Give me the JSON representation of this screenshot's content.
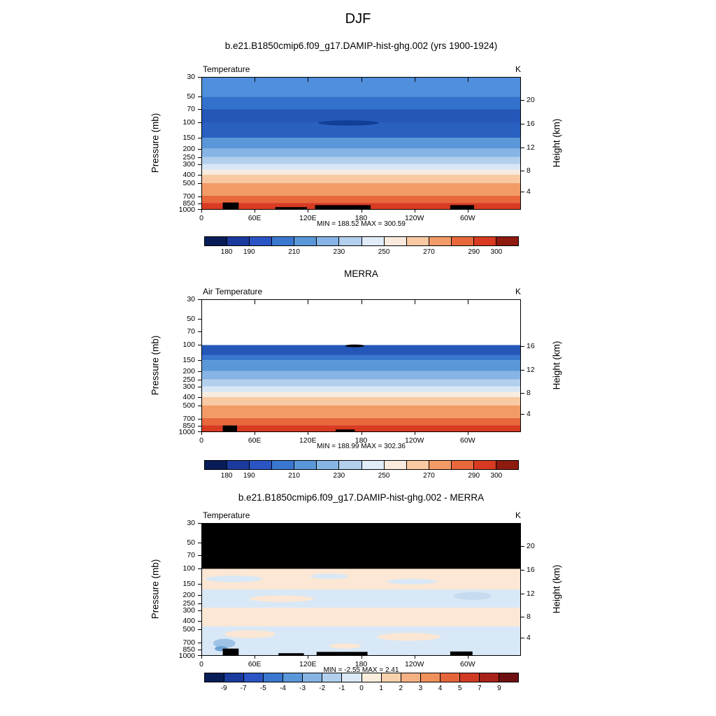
{
  "page": {
    "title": "DJF"
  },
  "chart_data": [
    {
      "type": "heatmap",
      "title": "b.e21.B1850cmip6.f09_g17.DAMIP-hist-ghg.002 (yrs 1900-1924)",
      "field_label": "Temperature",
      "units": "K",
      "y_axis_label": "Pressure (mb)",
      "y2_axis_label": "Height (km)",
      "y_range": [
        30,
        1000
      ],
      "y_scale": "log",
      "x_range_deg": [
        0,
        360
      ],
      "min": 188.52,
      "max": 300.59,
      "stats": "MIN = 188.52  MAX = 300.59",
      "x_ticks": [
        {
          "label": "0",
          "f": 0.0
        },
        {
          "label": "60E",
          "f": 0.1667
        },
        {
          "label": "120E",
          "f": 0.3333
        },
        {
          "label": "180",
          "f": 0.5
        },
        {
          "label": "120W",
          "f": 0.6667
        },
        {
          "label": "60W",
          "f": 0.8333
        }
      ],
      "pressure_ticks": [
        {
          "label": "30",
          "f": 0.0
        },
        {
          "label": "50",
          "f": 0.146
        },
        {
          "label": "70",
          "f": 0.242
        },
        {
          "label": "100",
          "f": 0.343
        },
        {
          "label": "150",
          "f": 0.459
        },
        {
          "label": "200",
          "f": 0.541
        },
        {
          "label": "250",
          "f": 0.605
        },
        {
          "label": "300",
          "f": 0.657
        },
        {
          "label": "400",
          "f": 0.739
        },
        {
          "label": "500",
          "f": 0.802
        },
        {
          "label": "700",
          "f": 0.898
        },
        {
          "label": "850",
          "f": 0.953
        },
        {
          "label": "1000",
          "f": 1.0
        }
      ],
      "height_ticks": [
        {
          "label": "20",
          "f": 0.173
        },
        {
          "label": "16",
          "f": 0.352
        },
        {
          "label": "12",
          "f": 0.533
        },
        {
          "label": "8",
          "f": 0.706
        },
        {
          "label": "4",
          "f": 0.863
        }
      ],
      "colorbar": {
        "levels": [
          180,
          190,
          200,
          210,
          220,
          230,
          240,
          250,
          260,
          270,
          280,
          290,
          300
        ],
        "colors": [
          "#081d58",
          "#1b3a9e",
          "#2b55c4",
          "#3a78d0",
          "#5a97d8",
          "#86b4e4",
          "#b2cfee",
          "#e0ecf8",
          "#faeadd",
          "#f8c9a2",
          "#f29b66",
          "#e8683c",
          "#d83b22",
          "#8e1a10"
        ],
        "tick_labels": [
          {
            "label": "180",
            "f": 0.0714
          },
          {
            "label": "190",
            "f": 0.1429
          },
          {
            "label": "210",
            "f": 0.2857
          },
          {
            "label": "230",
            "f": 0.4286
          },
          {
            "label": "250",
            "f": 0.5714
          },
          {
            "label": "270",
            "f": 0.7143
          },
          {
            "label": "290",
            "f": 0.8571
          },
          {
            "label": "300",
            "f": 0.9286
          }
        ]
      },
      "fill": {
        "bands": [
          {
            "f0": 0.0,
            "f1": 0.146,
            "c": "#4f8fdc"
          },
          {
            "f0": 0.146,
            "f1": 0.242,
            "c": "#3372cc"
          },
          {
            "f0": 0.242,
            "f1": 0.343,
            "c": "#2457b8"
          },
          {
            "f0": 0.343,
            "f1": 0.459,
            "c": "#2a60c0"
          },
          {
            "f0": 0.459,
            "f1": 0.541,
            "c": "#5a97d8"
          },
          {
            "f0": 0.541,
            "f1": 0.605,
            "c": "#86b4e4"
          },
          {
            "f0": 0.605,
            "f1": 0.657,
            "c": "#b2cfee"
          },
          {
            "f0": 0.657,
            "f1": 0.7,
            "c": "#d8e6f5"
          },
          {
            "f0": 0.7,
            "f1": 0.739,
            "c": "#f6ecdf"
          },
          {
            "f0": 0.739,
            "f1": 0.802,
            "c": "#f8c9a2"
          },
          {
            "f0": 0.802,
            "f1": 0.898,
            "c": "#f29b66"
          },
          {
            "f0": 0.898,
            "f1": 0.953,
            "c": "#e8683c"
          },
          {
            "f0": 0.953,
            "f1": 1.0,
            "c": "#d83b22"
          }
        ],
        "ellipses": [
          {
            "cx": 0.46,
            "cy": 0.345,
            "rx": 0.095,
            "ry": 0.02,
            "c": "#123f96"
          }
        ],
        "topo": [
          {
            "x": 0.065,
            "y": 0.95,
            "w": 0.05,
            "h": 0.05
          },
          {
            "x": 0.23,
            "y": 0.985,
            "w": 0.1,
            "h": 0.015
          },
          {
            "x": 0.355,
            "y": 0.97,
            "w": 0.175,
            "h": 0.03
          },
          {
            "x": 0.78,
            "y": 0.97,
            "w": 0.075,
            "h": 0.03
          }
        ]
      }
    },
    {
      "type": "heatmap",
      "title": "MERRA",
      "field_label": "Air Temperature",
      "units": "K",
      "y_axis_label": "Pressure (mb)",
      "y2_axis_label": "Height (km)",
      "y_range": [
        30,
        1000
      ],
      "y_scale": "log",
      "x_range_deg": [
        0,
        360
      ],
      "min": 188.99,
      "max": 302.36,
      "stats": "MIN = 188.99  MAX = 302.36",
      "x_ticks": [
        {
          "label": "0",
          "f": 0.0
        },
        {
          "label": "60E",
          "f": 0.1667
        },
        {
          "label": "120E",
          "f": 0.3333
        },
        {
          "label": "180",
          "f": 0.5
        },
        {
          "label": "120W",
          "f": 0.6667
        },
        {
          "label": "60W",
          "f": 0.8333
        }
      ],
      "pressure_ticks": [
        {
          "label": "30",
          "f": 0.0
        },
        {
          "label": "50",
          "f": 0.146
        },
        {
          "label": "70",
          "f": 0.242
        },
        {
          "label": "100",
          "f": 0.343
        },
        {
          "label": "150",
          "f": 0.459
        },
        {
          "label": "200",
          "f": 0.541
        },
        {
          "label": "250",
          "f": 0.605
        },
        {
          "label": "300",
          "f": 0.657
        },
        {
          "label": "400",
          "f": 0.739
        },
        {
          "label": "500",
          "f": 0.802
        },
        {
          "label": "700",
          "f": 0.898
        },
        {
          "label": "850",
          "f": 0.953
        },
        {
          "label": "1000",
          "f": 1.0
        }
      ],
      "height_ticks": [
        {
          "label": "16",
          "f": 0.352
        },
        {
          "label": "12",
          "f": 0.533
        },
        {
          "label": "8",
          "f": 0.706
        },
        {
          "label": "4",
          "f": 0.863
        }
      ],
      "colorbar": {
        "levels": [
          180,
          190,
          200,
          210,
          220,
          230,
          240,
          250,
          260,
          270,
          280,
          290,
          300
        ],
        "colors": [
          "#081d58",
          "#1b3a9e",
          "#2b55c4",
          "#3a78d0",
          "#5a97d8",
          "#86b4e4",
          "#b2cfee",
          "#e0ecf8",
          "#faeadd",
          "#f8c9a2",
          "#f29b66",
          "#e8683c",
          "#d83b22",
          "#8e1a10"
        ],
        "tick_labels": [
          {
            "label": "180",
            "f": 0.0714
          },
          {
            "label": "190",
            "f": 0.1429
          },
          {
            "label": "210",
            "f": 0.2857
          },
          {
            "label": "230",
            "f": 0.4286
          },
          {
            "label": "250",
            "f": 0.5714
          },
          {
            "label": "270",
            "f": 0.7143
          },
          {
            "label": "290",
            "f": 0.8571
          },
          {
            "label": "300",
            "f": 0.9286
          }
        ]
      },
      "fill": {
        "bands": [
          {
            "f0": 0.0,
            "f1": 0.343,
            "c": "#ffffff"
          },
          {
            "f0": 0.343,
            "f1": 0.42,
            "c": "#2457b8"
          },
          {
            "f0": 0.42,
            "f1": 0.459,
            "c": "#3a78d0"
          },
          {
            "f0": 0.459,
            "f1": 0.541,
            "c": "#5a97d8"
          },
          {
            "f0": 0.541,
            "f1": 0.605,
            "c": "#86b4e4"
          },
          {
            "f0": 0.605,
            "f1": 0.657,
            "c": "#b2cfee"
          },
          {
            "f0": 0.657,
            "f1": 0.7,
            "c": "#d8e6f5"
          },
          {
            "f0": 0.7,
            "f1": 0.739,
            "c": "#f6ecdf"
          },
          {
            "f0": 0.739,
            "f1": 0.802,
            "c": "#f8c9a2"
          },
          {
            "f0": 0.802,
            "f1": 0.898,
            "c": "#f29b66"
          },
          {
            "f0": 0.898,
            "f1": 0.953,
            "c": "#e8683c"
          },
          {
            "f0": 0.953,
            "f1": 1.0,
            "c": "#d83b22"
          }
        ],
        "ellipses": [
          {
            "cx": 0.48,
            "cy": 0.349,
            "rx": 0.03,
            "ry": 0.01,
            "c": "#000000"
          }
        ],
        "topo": [
          {
            "x": 0.065,
            "y": 0.955,
            "w": 0.045,
            "h": 0.045
          },
          {
            "x": 0.42,
            "y": 0.985,
            "w": 0.06,
            "h": 0.015
          }
        ]
      }
    },
    {
      "type": "heatmap",
      "title": "b.e21.B1850cmip6.f09_g17.DAMIP-hist-ghg.002 - MERRA",
      "field_label": "Temperature",
      "units": "K",
      "y_axis_label": "Pressure (mb)",
      "y2_axis_label": "Height (km)",
      "y_range": [
        30,
        1000
      ],
      "y_scale": "log",
      "x_range_deg": [
        0,
        360
      ],
      "min": -2.55,
      "max": 2.41,
      "stats": "MIN = -2.55  MAX =  2.41",
      "x_ticks": [
        {
          "label": "0",
          "f": 0.0
        },
        {
          "label": "60E",
          "f": 0.1667
        },
        {
          "label": "120E",
          "f": 0.3333
        },
        {
          "label": "180",
          "f": 0.5
        },
        {
          "label": "120W",
          "f": 0.6667
        },
        {
          "label": "60W",
          "f": 0.8333
        }
      ],
      "pressure_ticks": [
        {
          "label": "30",
          "f": 0.0
        },
        {
          "label": "50",
          "f": 0.146
        },
        {
          "label": "70",
          "f": 0.242
        },
        {
          "label": "100",
          "f": 0.343
        },
        {
          "label": "150",
          "f": 0.459
        },
        {
          "label": "200",
          "f": 0.541
        },
        {
          "label": "250",
          "f": 0.605
        },
        {
          "label": "300",
          "f": 0.657
        },
        {
          "label": "400",
          "f": 0.739
        },
        {
          "label": "500",
          "f": 0.802
        },
        {
          "label": "700",
          "f": 0.898
        },
        {
          "label": "850",
          "f": 0.953
        },
        {
          "label": "1000",
          "f": 1.0
        }
      ],
      "height_ticks": [
        {
          "label": "20",
          "f": 0.173
        },
        {
          "label": "16",
          "f": 0.352
        },
        {
          "label": "12",
          "f": 0.533
        },
        {
          "label": "8",
          "f": 0.706
        },
        {
          "label": "4",
          "f": 0.863
        }
      ],
      "colorbar": {
        "levels": [
          -9,
          -7,
          -5,
          -4,
          -3,
          -2,
          -1,
          0,
          1,
          2,
          3,
          4,
          5,
          7,
          9
        ],
        "colors": [
          "#081d58",
          "#1b3a9e",
          "#2b55c4",
          "#3a78d0",
          "#5a97d8",
          "#86b4e4",
          "#b2cfee",
          "#dce9f7",
          "#fbeedd",
          "#f8d2ae",
          "#f5b183",
          "#f0915c",
          "#e4653a",
          "#d13b24",
          "#a8221a",
          "#6e0f12"
        ],
        "tick_labels": [
          {
            "label": "-9",
            "f": 0.0625
          },
          {
            "label": "-7",
            "f": 0.125
          },
          {
            "label": "-5",
            "f": 0.1875
          },
          {
            "label": "-4",
            "f": 0.25
          },
          {
            "label": "-3",
            "f": 0.3125
          },
          {
            "label": "-2",
            "f": 0.375
          },
          {
            "label": "-1",
            "f": 0.4375
          },
          {
            "label": "0",
            "f": 0.5
          },
          {
            "label": "1",
            "f": 0.5625
          },
          {
            "label": "2",
            "f": 0.625
          },
          {
            "label": "3",
            "f": 0.6875
          },
          {
            "label": "4",
            "f": 0.75
          },
          {
            "label": "5",
            "f": 0.8125
          },
          {
            "label": "7",
            "f": 0.875
          },
          {
            "label": "9",
            "f": 0.9375
          }
        ]
      },
      "fill": {
        "bands": [
          {
            "f0": 0.0,
            "f1": 0.343,
            "c": "#000000"
          },
          {
            "f0": 0.343,
            "f1": 0.5,
            "c": "#fbe7d4"
          },
          {
            "f0": 0.5,
            "f1": 0.64,
            "c": "#d9e8f6"
          },
          {
            "f0": 0.64,
            "f1": 0.78,
            "c": "#fbe7d4"
          },
          {
            "f0": 0.78,
            "f1": 1.0,
            "c": "#d9e8f6"
          }
        ],
        "ellipses": [
          {
            "cx": 0.1,
            "cy": 0.42,
            "rx": 0.09,
            "ry": 0.025,
            "c": "#d9e8f6"
          },
          {
            "cx": 0.4,
            "cy": 0.4,
            "rx": 0.06,
            "ry": 0.02,
            "c": "#d9e8f6"
          },
          {
            "cx": 0.66,
            "cy": 0.44,
            "rx": 0.08,
            "ry": 0.02,
            "c": "#d9e8f6"
          },
          {
            "cx": 0.25,
            "cy": 0.57,
            "rx": 0.1,
            "ry": 0.025,
            "c": "#fbe7d4"
          },
          {
            "cx": 0.85,
            "cy": 0.55,
            "rx": 0.06,
            "ry": 0.03,
            "c": "#c6dbf0"
          },
          {
            "cx": 0.55,
            "cy": 0.7,
            "rx": 0.12,
            "ry": 0.03,
            "c": "#fbe7d4"
          },
          {
            "cx": 0.15,
            "cy": 0.84,
            "rx": 0.08,
            "ry": 0.03,
            "c": "#fbe7d4"
          },
          {
            "cx": 0.65,
            "cy": 0.86,
            "rx": 0.1,
            "ry": 0.03,
            "c": "#fbe7d4"
          },
          {
            "cx": 0.07,
            "cy": 0.91,
            "rx": 0.035,
            "ry": 0.035,
            "c": "#9fc3e6"
          },
          {
            "cx": 0.06,
            "cy": 0.95,
            "rx": 0.02,
            "ry": 0.02,
            "c": "#6fa3d4"
          },
          {
            "cx": 0.45,
            "cy": 0.93,
            "rx": 0.05,
            "ry": 0.02,
            "c": "#fbe7d4"
          }
        ],
        "topo": [
          {
            "x": 0.065,
            "y": 0.95,
            "w": 0.05,
            "h": 0.05
          },
          {
            "x": 0.24,
            "y": 0.985,
            "w": 0.08,
            "h": 0.015
          },
          {
            "x": 0.36,
            "y": 0.975,
            "w": 0.16,
            "h": 0.025
          },
          {
            "x": 0.78,
            "y": 0.972,
            "w": 0.07,
            "h": 0.028
          }
        ]
      }
    }
  ]
}
